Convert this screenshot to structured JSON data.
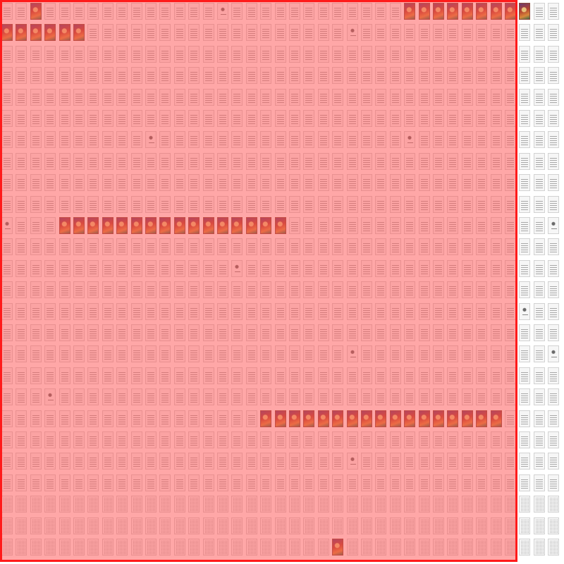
{
  "thumbnail_grid": {
    "columns": 39,
    "rows": 26,
    "cover_ranges": [
      {
        "row": 0,
        "cols": [
          2
        ]
      },
      {
        "row": 0,
        "cols": [
          28,
          29,
          30,
          31,
          32,
          33,
          34,
          35,
          36
        ]
      },
      {
        "row": 1,
        "cols": [
          0,
          1,
          2,
          3,
          4,
          5
        ]
      },
      {
        "row": 1,
        "cols": []
      },
      {
        "row": 10,
        "cols": [
          4,
          5,
          6,
          7,
          8,
          9,
          10,
          11,
          12,
          13,
          14,
          15,
          16,
          17,
          18,
          19
        ]
      },
      {
        "row": 19,
        "cols": [
          18,
          19,
          20,
          21,
          22,
          23,
          24,
          25,
          26,
          27,
          28,
          29,
          30,
          31,
          32,
          33,
          34
        ]
      },
      {
        "row": 25,
        "cols": [
          23
        ]
      }
    ],
    "title_page_cells": [
      {
        "row": 0,
        "col": 15
      },
      {
        "row": 1,
        "col": 24
      },
      {
        "row": 6,
        "col": 10
      },
      {
        "row": 6,
        "col": 28
      },
      {
        "row": 10,
        "col": 0
      },
      {
        "row": 12,
        "col": 16
      },
      {
        "row": 14,
        "col": 36
      },
      {
        "row": 16,
        "col": 24
      },
      {
        "row": 18,
        "col": 3
      },
      {
        "row": 21,
        "col": 24
      },
      {
        "row": 16,
        "col": 38
      },
      {
        "row": 10,
        "col": 38
      }
    ],
    "dense_rows": [
      23,
      24,
      25
    ]
  },
  "selection": {
    "color": "#ff1a1a"
  }
}
